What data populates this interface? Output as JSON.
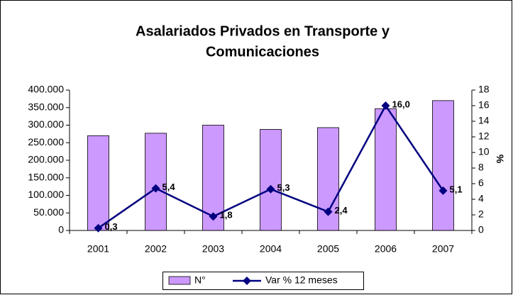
{
  "chart_data": {
    "type": "bar",
    "title": [
      "Asalariados Privados en Transporte y",
      "Comunicaciones"
    ],
    "categories": [
      "2001",
      "2002",
      "2003",
      "2004",
      "2005",
      "2006",
      "2007"
    ],
    "series": [
      {
        "name": "N°",
        "type": "bar",
        "color": "#cc99ff",
        "values": [
          270000,
          277000,
          300000,
          288000,
          293000,
          347000,
          370000
        ]
      },
      {
        "name": "Var % 12 meses",
        "type": "line",
        "axis": "y2",
        "color": "#000080",
        "values": [
          0.3,
          5.4,
          1.8,
          5.3,
          2.4,
          16.0,
          5.1
        ],
        "value_labels": [
          "0,3",
          "5,4",
          "1,8",
          "5,3",
          "2,4",
          "16,0",
          "5,1"
        ]
      }
    ],
    "ylim": [
      0,
      400000
    ],
    "yticks": [
      0,
      {
        "value": 50000,
        "label": "50.000"
      },
      {
        "value": 100000,
        "label": "100.000"
      },
      {
        "value": 150000,
        "label": "150.000"
      },
      {
        "value": 200000,
        "label": "200.000"
      },
      {
        "value": 250000,
        "label": "250.000"
      },
      {
        "value": 300000,
        "label": "300.000"
      },
      {
        "value": 350000,
        "label": "350.000"
      },
      {
        "value": 400000,
        "label": "400.000"
      }
    ],
    "y2lim": [
      0,
      18
    ],
    "y2ticks": [
      0,
      2,
      4,
      6,
      8,
      10,
      12,
      14,
      16,
      18
    ],
    "y2label": "%",
    "legend": "bottom"
  }
}
